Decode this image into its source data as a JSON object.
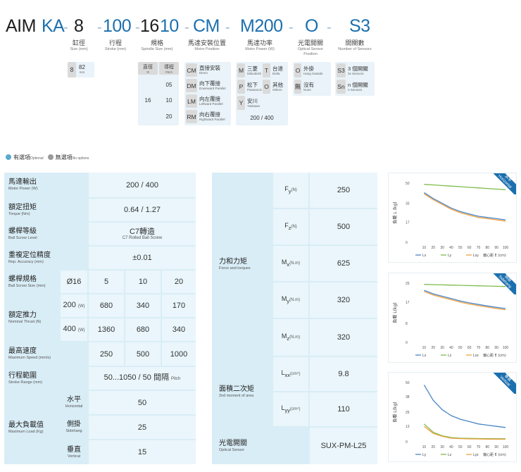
{
  "model_code": {
    "segments": [
      {
        "text": "AIM",
        "color": "dark"
      },
      {
        "text": "KA",
        "color": "blue"
      },
      {
        "text": "8",
        "color": "dark"
      },
      {
        "text": "100",
        "color": "blue"
      },
      {
        "text": "16",
        "color": "dark"
      },
      {
        "text": "10",
        "color": "blue"
      },
      {
        "text": "CM",
        "color": "blue"
      },
      {
        "text": "M200",
        "color": "blue"
      },
      {
        "text": "O",
        "color": "blue"
      },
      {
        "text": "S3",
        "color": "blue"
      }
    ],
    "labels": [
      {
        "zh": "缸徑",
        "en": "Size (mm)"
      },
      {
        "zh": "行程",
        "en": "Stroke (mm)"
      },
      {
        "zh": "規格",
        "en": "Spindle Size (mm)"
      },
      {
        "zh": "馬達安裝位置",
        "en": "Motor Position"
      },
      {
        "zh": "馬達功率",
        "en": "Motor Power (W)"
      },
      {
        "zh": "光電開關",
        "en": "Optical Sensor",
        "en2": "Position"
      },
      {
        "zh": "開關數",
        "en": "Number of Sensors"
      }
    ]
  },
  "options": {
    "size": {
      "key": "8",
      "value": "82",
      "unit": "mm"
    },
    "spindle": {
      "col1": "直徑",
      "col1_sub": "Φ",
      "col2": "導程",
      "col2_sub": "Pitch",
      "diameter": "16",
      "pitches": [
        "05",
        "10",
        "20"
      ]
    },
    "motor_position": [
      {
        "code": "CM",
        "zh": "直接安裝",
        "en": "Direct"
      },
      {
        "code": "DM",
        "zh": "向下覆接",
        "en": "Downward Parallel"
      },
      {
        "code": "LM",
        "zh": "向左覆接",
        "en": "Leftward Parallel"
      },
      {
        "code": "RM",
        "zh": "向右覆接",
        "en": "Rightward Parallel"
      }
    ],
    "motor_power": {
      "brands": [
        {
          "code": "M",
          "zh": "三菱",
          "en": "Mitsubishi"
        },
        {
          "code": "T",
          "zh": "台達",
          "en": "Delta"
        },
        {
          "code": "P",
          "zh": "松下",
          "en": "Panasonic"
        },
        {
          "code": "O",
          "zh": "其他",
          "en": "Others"
        },
        {
          "code": "Y",
          "zh": "安川",
          "en": "Yaskawa"
        }
      ],
      "values": "200 / 400"
    },
    "sensor_position": [
      {
        "code": "O",
        "zh": "外掛",
        "en": "Hang Outside"
      },
      {
        "code": "無",
        "zh": "沒有",
        "en": "None"
      }
    ],
    "sensor_count": [
      {
        "code": "S3",
        "zh": "3 個開關",
        "en": "3x Sensors"
      },
      {
        "code": "Sn",
        "zh": "n 個開關",
        "en": "n Sensors"
      }
    ]
  },
  "legend": {
    "optional": "有選項",
    "optional_en": "Optional",
    "none": "無選項",
    "none_en": "No options"
  },
  "spec_left": {
    "motor_output": {
      "zh": "馬達輸出",
      "en": "Motor Power (W)",
      "value": "200 / 400"
    },
    "rated_torque": {
      "zh": "額定扭矩",
      "en": "Torque (Nm)",
      "value": "0.64 / 1.27"
    },
    "screw_level": {
      "zh": "螺桿等級",
      "en": "Ball Screw Level",
      "value": "C7轉造",
      "value_en": "C7 Rolled Ball Screw"
    },
    "repeatability": {
      "zh": "重複定位精度",
      "en": "Rep. Accuracy (mm)",
      "value": "±0.01"
    },
    "screw_size": {
      "zh": "螺桿規格",
      "en": "Ball Screw Size (mm)",
      "diameter": "Ø16",
      "pitches": [
        "5",
        "10",
        "20"
      ]
    },
    "rated_thrust": {
      "zh": "額定推力",
      "en": "Nominal Thrust (N)",
      "rows": [
        {
          "power": "200",
          "unit": "(W)",
          "values": [
            "680",
            "340",
            "170"
          ]
        },
        {
          "power": "400",
          "unit": "(W)",
          "values": [
            "1360",
            "680",
            "340"
          ]
        }
      ]
    },
    "max_speed": {
      "zh": "最高速度",
      "en": "Maximum Speed (mm/s)",
      "values": [
        "250",
        "500",
        "1000"
      ]
    },
    "stroke_range": {
      "zh": "行程範圍",
      "en": "Stroke Range (mm)",
      "value": "50...1050 / 50 間隔",
      "value_suffix": "Pitch"
    },
    "max_load": {
      "zh": "最大負載值",
      "en": "Maximum Load (Kg)",
      "rows": [
        {
          "zh": "水平",
          "en": "Horizontal",
          "value": "50"
        },
        {
          "zh": "側掛",
          "en": "Sidehang",
          "value": "25"
        },
        {
          "zh": "垂直",
          "en": "Vertical",
          "value": "15"
        }
      ]
    }
  },
  "spec_right": {
    "force_torque": {
      "zh": "力和力矩",
      "en": "Force and torques",
      "rows": [
        {
          "sym": "F",
          "sub": "y",
          "unit": "(N)",
          "value": "250"
        },
        {
          "sym": "F",
          "sub": "z",
          "unit": "(N)",
          "value": "500"
        },
        {
          "sym": "M",
          "sub": "x",
          "unit": "(N.m)",
          "value": "625"
        },
        {
          "sym": "M",
          "sub": "y",
          "unit": "(N.m)",
          "value": "320"
        },
        {
          "sym": "M",
          "sub": "z",
          "unit": "(N.m)",
          "value": "320"
        }
      ]
    },
    "area_moment": {
      "zh": "面積二次矩",
      "en": "2nd moment of area",
      "rows": [
        {
          "sym": "L",
          "sub": "xx",
          "unit": "(cm⁴)",
          "value": "9.8"
        },
        {
          "sym": "L",
          "sub": "yy",
          "unit": "(cm⁴)",
          "value": "110"
        }
      ]
    },
    "optical_sensor": {
      "zh": "光電開關",
      "en": "Optical Sensor",
      "value": "SUX-PM-L25"
    }
  },
  "chart_data": [
    {
      "type": "line",
      "ribbon": "水平",
      "ribbon_en": "Horizontal",
      "ylabel": "負載 L (kg)",
      "xlabel": "偏心距 E (cm)",
      "ylim": [
        0,
        50
      ],
      "yticks": [
        0,
        17,
        33,
        50
      ],
      "x": [
        10,
        20,
        30,
        40,
        50,
        60,
        70,
        80,
        90,
        100
      ],
      "series": [
        {
          "name": "Lx",
          "color": "#4a86c5",
          "values": [
            42,
            37,
            33,
            29,
            26,
            24,
            22,
            21,
            20,
            19
          ]
        },
        {
          "name": "Ly",
          "color": "#7dbb4b",
          "values": [
            49,
            48.5,
            48,
            47.5,
            47,
            46.5,
            46,
            45.5,
            45,
            44.5
          ]
        },
        {
          "name": "Lxy",
          "color": "#f0a040",
          "values": [
            41,
            36,
            32,
            28,
            25,
            23,
            21,
            20,
            19,
            18
          ]
        }
      ]
    },
    {
      "type": "line",
      "ribbon": "側掛",
      "ribbon_en": "Sidehang",
      "ylabel": "負載 L(kg)",
      "xlabel": "偏心距 E (cm)",
      "ylim": [
        0,
        25
      ],
      "yticks": [
        0,
        8,
        17,
        25
      ],
      "x": [
        10,
        20,
        30,
        40,
        50,
        60,
        70,
        80,
        90,
        100
      ],
      "series": [
        {
          "name": "Lx",
          "color": "#4a86c5",
          "values": [
            22,
            20.5,
            19.5,
            18.5,
            17.5,
            16.7,
            16,
            15.4,
            14.8,
            14.3
          ]
        },
        {
          "name": "Lz",
          "color": "#7dbb4b",
          "values": [
            24.5,
            24.4,
            24.3,
            24.2,
            24.1,
            24,
            23.9,
            23.8,
            23.7,
            23.6
          ]
        },
        {
          "name": "Lxz",
          "color": "#f0a040",
          "values": [
            21.5,
            20,
            19,
            18,
            17,
            16.2,
            15.5,
            14.9,
            14.3,
            13.8
          ]
        }
      ]
    },
    {
      "type": "line",
      "ribbon": "垂直",
      "ribbon_en": "Vertical",
      "ylabel": "負載 L(kg)",
      "xlabel": "偏心距 E (cm)",
      "ylim": [
        0,
        50
      ],
      "yticks": [
        0,
        13,
        25,
        38,
        50
      ],
      "x": [
        10,
        20,
        30,
        40,
        50,
        60,
        70,
        80,
        90,
        100
      ],
      "series": [
        {
          "name": "Ly",
          "color": "#4a86c5",
          "values": [
            48,
            35,
            27,
            22,
            19,
            17,
            15,
            14,
            13,
            12
          ]
        },
        {
          "name": "Lz",
          "color": "#7dbb4b",
          "values": [
            15,
            8,
            5,
            3.5,
            3,
            2.8,
            2.7,
            2.6,
            2.5,
            2.5
          ]
        },
        {
          "name": "Lyz",
          "color": "#f0a040",
          "values": [
            13,
            7,
            4.5,
            3,
            2.6,
            2.4,
            2.3,
            2.2,
            2.1,
            2.1
          ]
        }
      ]
    }
  ]
}
